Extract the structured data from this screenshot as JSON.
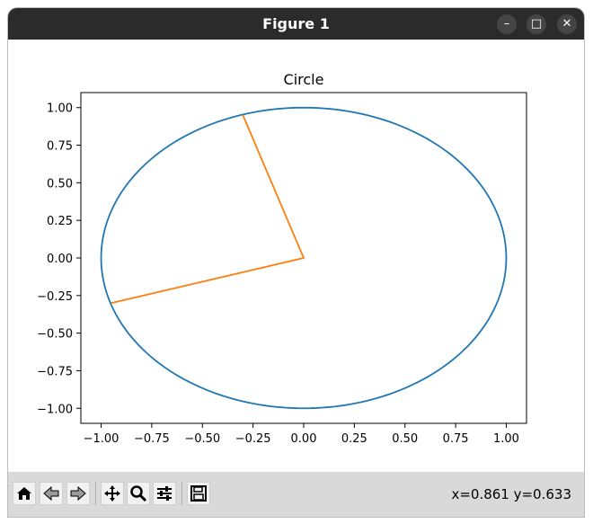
{
  "window": {
    "title": "Figure 1",
    "minimize_glyph": "–",
    "maximize_glyph": "□",
    "close_glyph": "✕"
  },
  "toolbar": {
    "buttons": [
      {
        "name": "home",
        "icon": "home-icon"
      },
      {
        "name": "back",
        "icon": "left-arrow-icon"
      },
      {
        "name": "forward",
        "icon": "right-arrow-icon"
      },
      {
        "name": "pan",
        "icon": "move-icon"
      },
      {
        "name": "zoom",
        "icon": "magnifier-icon"
      },
      {
        "name": "configure-subplots",
        "icon": "sliders-icon"
      },
      {
        "name": "save",
        "icon": "floppy-icon"
      }
    ],
    "coords_text": "x=0.861 y=0.633"
  },
  "chart_data": {
    "type": "line",
    "title": "Circle",
    "xlabel": "",
    "ylabel": "",
    "xlim": [
      -1.1,
      1.1
    ],
    "ylim": [
      -1.1,
      1.1
    ],
    "xticks": [
      "−1.00",
      "−0.75",
      "−0.50",
      "−0.25",
      "0.00",
      "0.25",
      "0.50",
      "0.75",
      "1.00"
    ],
    "xtick_values": [
      -1.0,
      -0.75,
      -0.5,
      -0.25,
      0.0,
      0.25,
      0.5,
      0.75,
      1.0
    ],
    "yticks": [
      "1.00",
      "0.75",
      "0.50",
      "0.25",
      "0.00",
      "−0.25",
      "−0.50",
      "−0.75",
      "−1.00"
    ],
    "ytick_values": [
      1.0,
      0.75,
      0.5,
      0.25,
      0.0,
      -0.25,
      -0.5,
      -0.75,
      -1.0
    ],
    "grid": false,
    "series": [
      {
        "type": "circle",
        "radius": 1.0,
        "center": [
          0,
          0
        ],
        "color": "#1f77b4"
      },
      {
        "type": "polyline",
        "points": [
          [
            -0.3,
            0.95
          ],
          [
            0,
            0
          ],
          [
            -0.95,
            -0.3
          ]
        ],
        "color": "#ff7f0e"
      }
    ]
  }
}
